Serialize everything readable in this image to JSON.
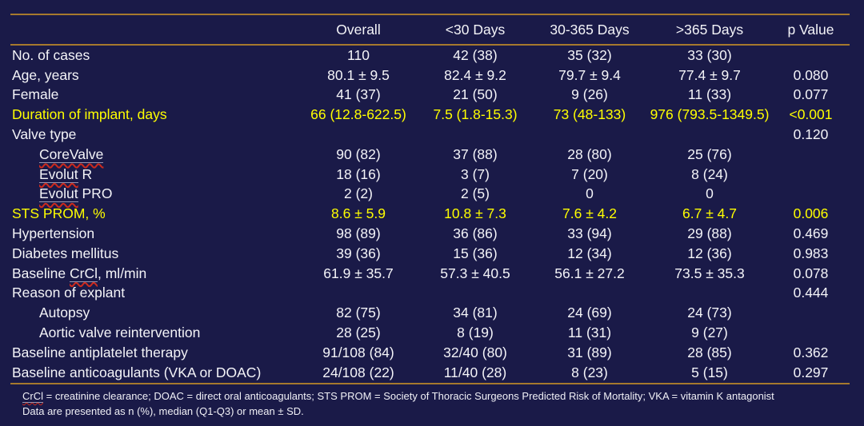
{
  "slide": {
    "background_color": "#1a1a48",
    "rule_color": "#a6792d",
    "highlight_color": "#ffff00",
    "text_color": "#f4f4f8"
  },
  "table": {
    "header": [
      "",
      "Overall",
      "<30 Days",
      "30-365 Days",
      ">365 Days",
      "p Value"
    ],
    "rows": [
      {
        "label_parts": [
          {
            "text": "No. of cases"
          }
        ],
        "indent": false,
        "highlight": false,
        "values": [
          "110",
          "42 (38)",
          "35 (32)",
          "33 (30)",
          ""
        ]
      },
      {
        "label_parts": [
          {
            "text": "Age, years"
          }
        ],
        "indent": false,
        "highlight": false,
        "values": [
          "80.1 ± 9.5",
          "82.4 ± 9.2",
          "79.7 ± 9.4",
          "77.4 ± 9.7",
          "0.080"
        ]
      },
      {
        "label_parts": [
          {
            "text": "Female"
          }
        ],
        "indent": false,
        "highlight": false,
        "values": [
          "41 (37)",
          "21 (50)",
          "9 (26)",
          "11 (33)",
          "0.077"
        ]
      },
      {
        "label_parts": [
          {
            "text": "Duration of implant, days"
          }
        ],
        "indent": false,
        "highlight": true,
        "values": [
          "66 (12.8-622.5)",
          "7.5 (1.8-15.3)",
          "73 (48-133)",
          "976 (793.5-1349.5)",
          "<0.001"
        ]
      },
      {
        "label_parts": [
          {
            "text": "Valve type"
          }
        ],
        "indent": false,
        "highlight": false,
        "values": [
          "",
          "",
          "",
          "",
          "0.120"
        ]
      },
      {
        "label_parts": [
          {
            "text": "CoreValve",
            "misspelled": true
          }
        ],
        "indent": true,
        "highlight": false,
        "values": [
          "90 (82)",
          "37 (88)",
          "28 (80)",
          "25 (76)",
          ""
        ]
      },
      {
        "label_parts": [
          {
            "text": "Evolut",
            "misspelled": true
          },
          {
            "text": " R"
          }
        ],
        "indent": true,
        "highlight": false,
        "values": [
          "18 (16)",
          "3 (7)",
          "7 (20)",
          "8 (24)",
          ""
        ]
      },
      {
        "label_parts": [
          {
            "text": "Evolut",
            "misspelled": true
          },
          {
            "text": " PRO"
          }
        ],
        "indent": true,
        "highlight": false,
        "values": [
          "2 (2)",
          "2 (5)",
          "0",
          "0",
          ""
        ]
      },
      {
        "label_parts": [
          {
            "text": "STS PROM, %"
          }
        ],
        "indent": false,
        "highlight": true,
        "values": [
          "8.6 ± 5.9",
          "10.8 ± 7.3",
          "7.6 ± 4.2",
          "6.7 ± 4.7",
          "0.006"
        ]
      },
      {
        "label_parts": [
          {
            "text": "Hypertension"
          }
        ],
        "indent": false,
        "highlight": false,
        "values": [
          "98 (89)",
          "36 (86)",
          "33 (94)",
          "29 (88)",
          "0.469"
        ]
      },
      {
        "label_parts": [
          {
            "text": "Diabetes mellitus"
          }
        ],
        "indent": false,
        "highlight": false,
        "values": [
          "39 (36)",
          "15 (36)",
          "12 (34)",
          "12 (36)",
          "0.983"
        ]
      },
      {
        "label_parts": [
          {
            "text": "Baseline "
          },
          {
            "text": "CrCl",
            "misspelled": true
          },
          {
            "text": ", ml/min"
          }
        ],
        "indent": false,
        "highlight": false,
        "values": [
          "61.9 ± 35.7",
          "57.3 ± 40.5",
          "56.1 ± 27.2",
          "73.5 ± 35.3",
          "0.078"
        ]
      },
      {
        "label_parts": [
          {
            "text": "Reason of explant"
          }
        ],
        "indent": false,
        "highlight": false,
        "values": [
          "",
          "",
          "",
          "",
          "0.444"
        ]
      },
      {
        "label_parts": [
          {
            "text": "Autopsy"
          }
        ],
        "indent": true,
        "highlight": false,
        "values": [
          "82 (75)",
          "34 (81)",
          "24 (69)",
          "24 (73)",
          ""
        ]
      },
      {
        "label_parts": [
          {
            "text": "Aortic valve reintervention"
          }
        ],
        "indent": true,
        "highlight": false,
        "values": [
          "28 (25)",
          "8 (19)",
          "11 (31)",
          "9 (27)",
          ""
        ]
      },
      {
        "label_parts": [
          {
            "text": "Baseline antiplatelet therapy"
          }
        ],
        "indent": false,
        "highlight": false,
        "values": [
          "91/108 (84)",
          "32/40 (80)",
          "31 (89)",
          "28 (85)",
          "0.362"
        ]
      },
      {
        "label_parts": [
          {
            "text": "Baseline anticoagulants (VKA or DOAC)"
          }
        ],
        "indent": false,
        "highlight": false,
        "values": [
          "24/108 (22)",
          "11/40 (28)",
          "8 (23)",
          "5 (15)",
          "0.297"
        ]
      }
    ]
  },
  "footnotes": {
    "line1_parts": [
      {
        "text": "CrCl",
        "misspelled": true
      },
      {
        "text": " = creatinine clearance; DOAC = direct oral anticoagulants; STS PROM = Society of Thoracic Surgeons Predicted Risk of Mortality; VKA = vitamin K antagonist"
      }
    ],
    "line2": "Data are presented as n (%), median (Q1-Q3) or mean ± SD."
  }
}
